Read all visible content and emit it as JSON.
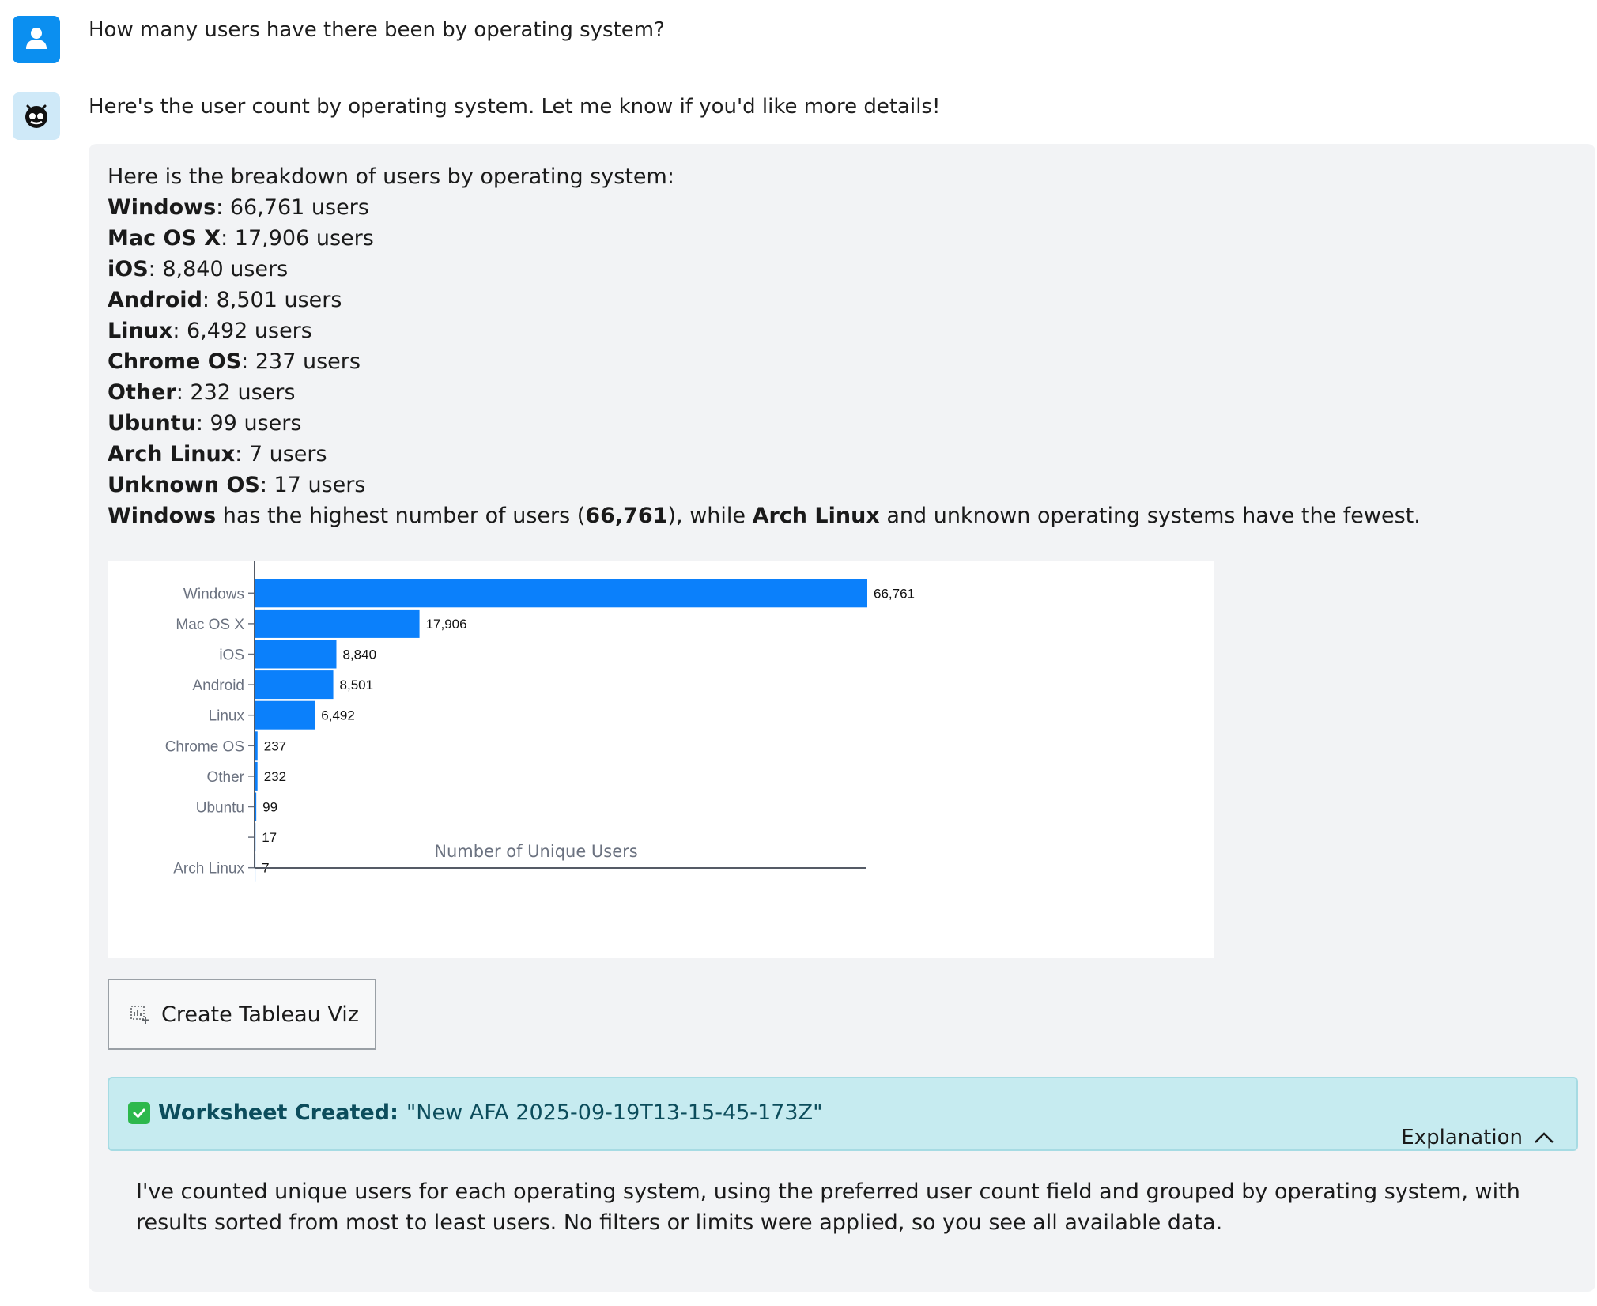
{
  "user_message": {
    "avatar_icon": "user-icon",
    "text": "How many users have there been by operating system?"
  },
  "assistant_message": {
    "avatar_icon": "bot-icon",
    "intro": "Here's the user count by operating system. Let me know if you'd like more details!"
  },
  "summary": {
    "heading": "Here is the breakdown of users by operating system:",
    "items": [
      {
        "name": "Windows",
        "rest": ": 66,761 users"
      },
      {
        "name": "Mac OS X",
        "rest": ": 17,906 users"
      },
      {
        "name": "iOS",
        "rest": ": 8,840 users"
      },
      {
        "name": "Android",
        "rest": ": 8,501 users"
      },
      {
        "name": "Linux",
        "rest": ": 6,492 users"
      },
      {
        "name": "Chrome OS",
        "rest": ": 237 users"
      },
      {
        "name": "Other",
        "rest": ": 232 users"
      },
      {
        "name": "Ubuntu",
        "rest": ": 99 users"
      },
      {
        "name": "Arch Linux",
        "rest": ": 7 users"
      },
      {
        "name": "Unknown OS",
        "rest": ": 17 users"
      }
    ],
    "conclusion": {
      "b1": "Windows",
      "t1": " has the highest number of users (",
      "b2": "66,761",
      "t2": "), while ",
      "b3": "Arch Linux",
      "t3": " and unknown operating systems have the fewest."
    }
  },
  "chart_data": {
    "type": "bar",
    "orientation": "horizontal",
    "categories": [
      "Windows",
      "Mac OS X",
      "iOS",
      "Android",
      "Linux",
      "Chrome OS",
      "Other",
      "Ubuntu",
      "",
      "Arch Linux"
    ],
    "values": [
      66761,
      17906,
      8840,
      8501,
      6492,
      237,
      232,
      99,
      17,
      7
    ],
    "data_labels": [
      "66,761",
      "17,906",
      "8,840",
      "8,501",
      "6,492",
      "237",
      "232",
      "99",
      "17",
      "7"
    ],
    "xlabel": "Number of Unique Users",
    "ylabel": "",
    "xlim": [
      0,
      66761
    ],
    "bar_color": "#0b80fb",
    "grid": false
  },
  "actions": {
    "create_viz_label": "Create Tableau Viz",
    "create_viz_icon": "chart-add-icon"
  },
  "worksheet": {
    "status_icon": "check-icon",
    "label": "Worksheet Created:",
    "name": "\"New AFA 2025-09-19T13-15-45-173Z\"",
    "explanation_toggle": "Explanation",
    "toggle_icon": "chevron-up-icon"
  },
  "explanation": "I've counted unique users for each operating system, using the preferred user count field and grouped by operating system, with results sorted from most to least users. No filters or limits were applied, so you see all available data."
}
